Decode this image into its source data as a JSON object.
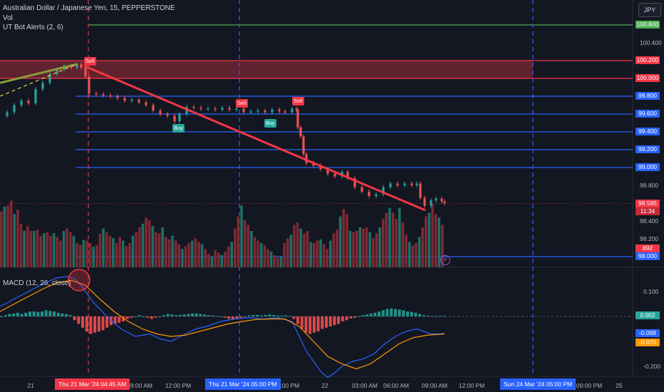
{
  "chart_data": [
    {
      "type": "line",
      "title": "Australian Dollar / Japanese Yen, 15, PEPPERSTONE",
      "currency": "JPY",
      "indicators": [
        "Vol",
        "UT Bot Alerts (2, 6)"
      ],
      "price_axis_ticks": [
        "100.400",
        "99.800",
        "99.600",
        "99.400",
        "99.200",
        "99.000",
        "98.800",
        "98.600",
        "98.400",
        "98.200",
        "98.000"
      ],
      "horizontal_levels": [
        {
          "label": "100.600",
          "color": "#4caf50"
        },
        {
          "label": "100.200",
          "color": "#f23645"
        },
        {
          "label": "100.000",
          "color": "#f23645"
        },
        {
          "label": "99.800",
          "color": "#2962ff"
        },
        {
          "label": "99.600",
          "color": "#2962ff"
        },
        {
          "label": "99.400",
          "color": "#2962ff"
        },
        {
          "label": "99.200",
          "color": "#2962ff"
        },
        {
          "label": "99.000",
          "color": "#2962ff"
        },
        {
          "label": "98.000",
          "color": "#2962ff"
        }
      ],
      "resistance_zone": [
        100.0,
        100.2
      ],
      "last_price": {
        "label": "98.595",
        "countdown": "11:34",
        "color": "#f23645"
      },
      "volume_tag": "892",
      "signals": [
        {
          "label": "Sell",
          "color": "#f23645"
        },
        {
          "label": "Buy",
          "color": "#26a69a"
        },
        {
          "label": "Sell",
          "color": "#f23645"
        },
        {
          "label": "Buy",
          "color": "#26a69a"
        },
        {
          "label": "Sell",
          "color": "#f23645"
        }
      ],
      "price_series": [
        [
          0,
          99.58
        ],
        [
          10,
          99.62
        ],
        [
          20,
          99.7
        ],
        [
          30,
          99.75
        ],
        [
          40,
          99.72
        ],
        [
          50,
          99.88
        ],
        [
          60,
          99.95
        ],
        [
          70,
          100.05
        ],
        [
          80,
          100.1
        ],
        [
          90,
          100.14
        ],
        [
          100,
          100.12
        ],
        [
          108,
          100.16
        ],
        [
          114,
          100.12
        ],
        [
          120,
          100.02
        ],
        [
          125,
          99.83
        ],
        [
          135,
          99.82
        ],
        [
          145,
          99.81
        ],
        [
          155,
          99.8
        ],
        [
          165,
          99.78
        ],
        [
          175,
          99.75
        ],
        [
          185,
          99.76
        ],
        [
          195,
          99.73
        ],
        [
          205,
          99.7
        ],
        [
          215,
          99.64
        ],
        [
          225,
          99.6
        ],
        [
          235,
          99.58
        ],
        [
          245,
          99.52
        ],
        [
          252,
          99.6
        ],
        [
          262,
          99.68
        ],
        [
          272,
          99.67
        ],
        [
          282,
          99.66
        ],
        [
          292,
          99.66
        ],
        [
          302,
          99.65
        ],
        [
          312,
          99.67
        ],
        [
          322,
          99.65
        ],
        [
          332,
          99.66
        ],
        [
          342,
          99.62
        ],
        [
          352,
          99.63
        ],
        [
          362,
          99.64
        ],
        [
          372,
          99.62
        ],
        [
          382,
          99.65
        ],
        [
          392,
          99.63
        ],
        [
          400,
          99.62
        ],
        [
          410,
          99.66
        ],
        [
          416,
          99.65
        ],
        [
          418,
          99.45
        ],
        [
          422,
          99.35
        ],
        [
          426,
          99.15
        ],
        [
          430,
          99.05
        ],
        [
          440,
          99.02
        ],
        [
          450,
          98.98
        ],
        [
          460,
          98.93
        ],
        [
          470,
          98.9
        ],
        [
          480,
          98.95
        ],
        [
          488,
          98.88
        ],
        [
          498,
          98.78
        ],
        [
          508,
          98.73
        ],
        [
          518,
          98.68
        ],
        [
          528,
          98.7
        ],
        [
          538,
          98.78
        ],
        [
          548,
          98.82
        ],
        [
          558,
          98.8
        ],
        [
          568,
          98.82
        ],
        [
          578,
          98.8
        ],
        [
          585,
          98.82
        ],
        [
          590,
          98.66
        ],
        [
          596,
          98.57
        ],
        [
          605,
          98.63
        ],
        [
          612,
          98.65
        ],
        [
          620,
          98.62
        ],
        [
          624,
          98.6
        ]
      ],
      "volume_series": [
        92,
        100,
        102,
        110,
        88,
        95,
        72,
        60,
        68,
        60,
        60,
        62,
        52,
        56,
        58,
        52,
        56,
        50,
        44,
        60,
        64,
        58,
        52,
        40,
        37,
        45,
        44,
        40,
        34,
        37,
        55,
        64,
        58,
        52,
        48,
        40,
        50,
        44,
        35,
        40,
        52,
        58,
        66,
        72,
        82,
        78,
        68,
        58,
        56,
        66,
        50,
        46,
        52,
        44,
        38,
        30,
        35,
        40,
        44,
        48,
        42,
        38,
        30,
        22,
        18,
        28,
        24,
        20,
        26,
        34,
        42,
        64,
        84,
        102,
        78,
        70,
        60,
        50,
        44,
        40,
        36,
        30,
        26,
        20,
        16,
        18,
        40,
        48,
        54,
        70,
        74,
        64,
        56,
        60,
        42,
        40,
        44,
        46,
        38,
        30,
        44,
        56,
        62,
        84,
        96,
        88,
        60,
        58,
        60,
        66,
        64,
        66,
        58,
        48,
        56,
        66,
        80,
        90,
        98,
        90,
        80,
        98,
        74,
        54,
        42,
        36,
        40,
        50,
        66,
        84,
        90,
        104,
        88,
        82,
        70
      ],
      "time_axis_labels": [
        "21",
        "09:00 AM",
        "12:00 PM",
        "09:00 PM",
        "22",
        "03:00 AM",
        "06:00 AM",
        "09:00 AM",
        "12:00 PM",
        "09:00 PM",
        "25"
      ],
      "time_axis_highlights": [
        {
          "label": "Thu 21 Mar '24  04:45 AM",
          "color": "#f23645"
        },
        {
          "label": "Thu 21 Mar '24  05:00 PM",
          "color": "#2962ff"
        },
        {
          "label": "Sun 24 Mar '24  05:00 PM",
          "color": "#2962ff"
        }
      ]
    },
    {
      "type": "line",
      "title": "MACD (12, 26, close)",
      "axis_ticks": [
        "0.100",
        "-0.200"
      ],
      "tags": [
        {
          "label": "0.002",
          "color": "#26a69a"
        },
        {
          "label": "-0.068",
          "color": "#2962ff"
        },
        {
          "label": "-0.070",
          "color": "#ff9800"
        }
      ],
      "macd_line": [
        [
          0,
          0.04
        ],
        [
          20,
          0.07
        ],
        [
          40,
          0.1
        ],
        [
          60,
          0.13
        ],
        [
          80,
          0.155
        ],
        [
          95,
          0.16
        ],
        [
          105,
          0.15
        ],
        [
          115,
          0.12
        ],
        [
          130,
          0.06
        ],
        [
          150,
          0.0
        ],
        [
          170,
          -0.05
        ],
        [
          190,
          -0.08
        ],
        [
          210,
          -0.07
        ],
        [
          225,
          -0.09
        ],
        [
          240,
          -0.1
        ],
        [
          260,
          -0.07
        ],
        [
          275,
          -0.05
        ],
        [
          290,
          -0.04
        ],
        [
          310,
          -0.02
        ],
        [
          330,
          -0.01
        ],
        [
          350,
          -0.005
        ],
        [
          370,
          -0.01
        ],
        [
          390,
          -0.005
        ],
        [
          410,
          -0.02
        ],
        [
          420,
          -0.08
        ],
        [
          430,
          -0.14
        ],
        [
          440,
          -0.18
        ],
        [
          450,
          -0.22
        ],
        [
          460,
          -0.245
        ],
        [
          470,
          -0.225
        ],
        [
          480,
          -0.2
        ],
        [
          495,
          -0.18
        ],
        [
          510,
          -0.17
        ],
        [
          525,
          -0.15
        ],
        [
          540,
          -0.11
        ],
        [
          555,
          -0.08
        ],
        [
          570,
          -0.06
        ],
        [
          585,
          -0.05
        ],
        [
          595,
          -0.06
        ],
        [
          605,
          -0.07
        ],
        [
          615,
          -0.07
        ],
        [
          624,
          -0.068
        ]
      ],
      "signal_line": [
        [
          0,
          0.02
        ],
        [
          20,
          0.05
        ],
        [
          40,
          0.08
        ],
        [
          60,
          0.11
        ],
        [
          80,
          0.135
        ],
        [
          100,
          0.145
        ],
        [
          120,
          0.125
        ],
        [
          140,
          0.07
        ],
        [
          160,
          0.02
        ],
        [
          180,
          -0.02
        ],
        [
          200,
          -0.05
        ],
        [
          220,
          -0.07
        ],
        [
          240,
          -0.08
        ],
        [
          260,
          -0.075
        ],
        [
          280,
          -0.06
        ],
        [
          300,
          -0.045
        ],
        [
          320,
          -0.03
        ],
        [
          340,
          -0.02
        ],
        [
          360,
          -0.012
        ],
        [
          380,
          -0.01
        ],
        [
          400,
          -0.01
        ],
        [
          420,
          -0.04
        ],
        [
          440,
          -0.1
        ],
        [
          460,
          -0.16
        ],
        [
          480,
          -0.19
        ],
        [
          500,
          -0.21
        ],
        [
          520,
          -0.19
        ],
        [
          540,
          -0.15
        ],
        [
          560,
          -0.11
        ],
        [
          580,
          -0.085
        ],
        [
          600,
          -0.075
        ],
        [
          615,
          -0.072
        ],
        [
          624,
          -0.07
        ]
      ],
      "histogram": [
        0.0,
        0.005,
        0.01,
        0.012,
        0.015,
        0.01,
        0.015,
        0.02,
        0.02,
        0.018,
        0.02,
        0.025,
        0.022,
        0.02,
        0.015,
        0.012,
        0.01,
        0.005,
        -0.015,
        -0.03,
        -0.045,
        -0.06,
        -0.07,
        -0.065,
        -0.06,
        -0.055,
        -0.045,
        -0.035,
        -0.03,
        -0.025,
        -0.02,
        -0.01,
        -0.005,
        0.0,
        0.005,
        0.0,
        -0.005,
        -0.01,
        -0.005,
        0.0,
        0.005,
        0.01,
        0.008,
        0.005,
        0.006,
        0.008,
        0.01,
        0.012,
        0.012,
        0.01,
        0.008,
        0.005,
        0.004,
        0.002,
        0.0,
        -0.005,
        -0.01,
        -0.012,
        -0.01,
        -0.005,
        0.0,
        0.004,
        0.006,
        0.006,
        0.004,
        0.006,
        0.008,
        0.006,
        0.004,
        0.003,
        0.004,
        0.002,
        -0.01,
        -0.03,
        -0.05,
        -0.065,
        -0.07,
        -0.065,
        -0.06,
        -0.05,
        -0.045,
        -0.04,
        -0.035,
        -0.03,
        -0.02,
        -0.015,
        -0.008,
        -0.005,
        0.0,
        0.005,
        0.008,
        0.012,
        0.015,
        0.02,
        0.025,
        0.03,
        0.032,
        0.03,
        0.028,
        0.025,
        0.02,
        0.018,
        0.015,
        0.01,
        0.005,
        0.003,
        0.002,
        0.002,
        0.002,
        0.002
      ]
    }
  ]
}
